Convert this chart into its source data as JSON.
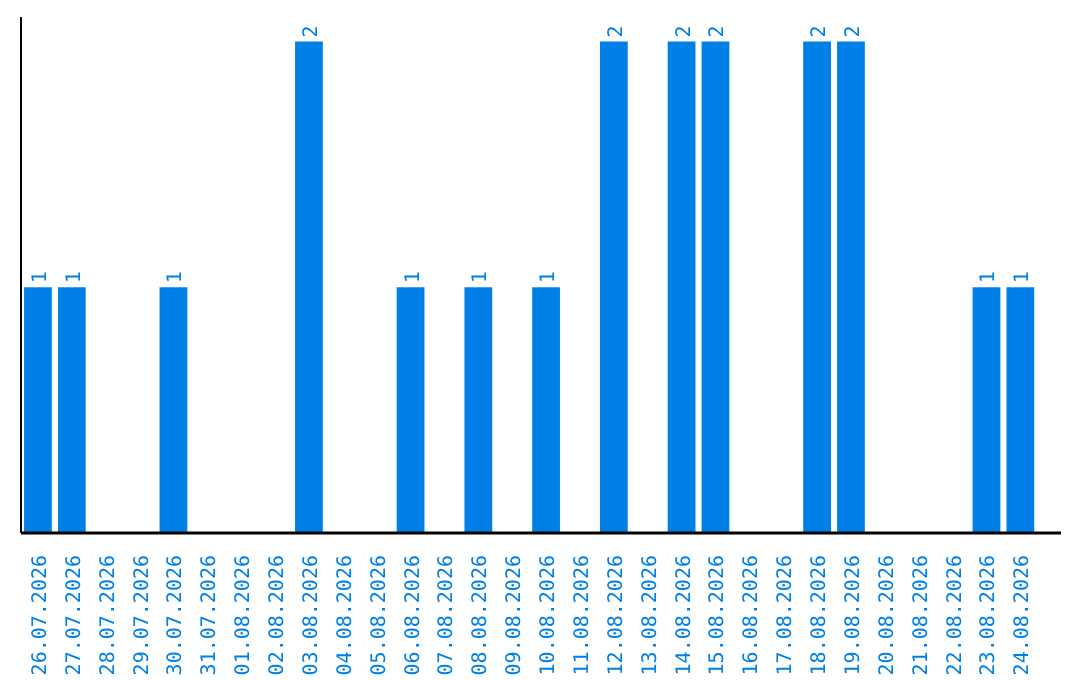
{
  "chart_data": {
    "type": "bar",
    "categories": [
      "26.07.2026",
      "27.07.2026",
      "28.07.2026",
      "29.07.2026",
      "30.07.2026",
      "31.07.2026",
      "01.08.2026",
      "02.08.2026",
      "03.08.2026",
      "04.08.2026",
      "05.08.2026",
      "06.08.2026",
      "07.08.2026",
      "08.08.2026",
      "09.08.2026",
      "10.08.2026",
      "11.08.2026",
      "12.08.2026",
      "13.08.2026",
      "14.08.2026",
      "15.08.2026",
      "16.08.2026",
      "17.08.2026",
      "18.08.2026",
      "19.08.2026",
      "20.08.2026",
      "21.08.2026",
      "22.08.2026",
      "23.08.2026",
      "24.08.2026"
    ],
    "values": [
      1,
      1,
      0,
      0,
      1,
      0,
      0,
      0,
      2,
      0,
      0,
      1,
      0,
      1,
      0,
      1,
      0,
      2,
      0,
      2,
      2,
      0,
      0,
      2,
      2,
      0,
      0,
      0,
      1,
      1
    ],
    "value_labels": [
      "1",
      "1",
      null,
      null,
      "1",
      null,
      null,
      null,
      "2",
      null,
      null,
      "1",
      null,
      "1",
      null,
      "1",
      null,
      "2",
      null,
      "2",
      "2",
      null,
      null,
      "2",
      "2",
      null,
      null,
      null,
      "1",
      "1"
    ],
    "color": "#0080e6",
    "ylim": [
      0,
      2.1
    ],
    "tick_labels": "x"
  }
}
